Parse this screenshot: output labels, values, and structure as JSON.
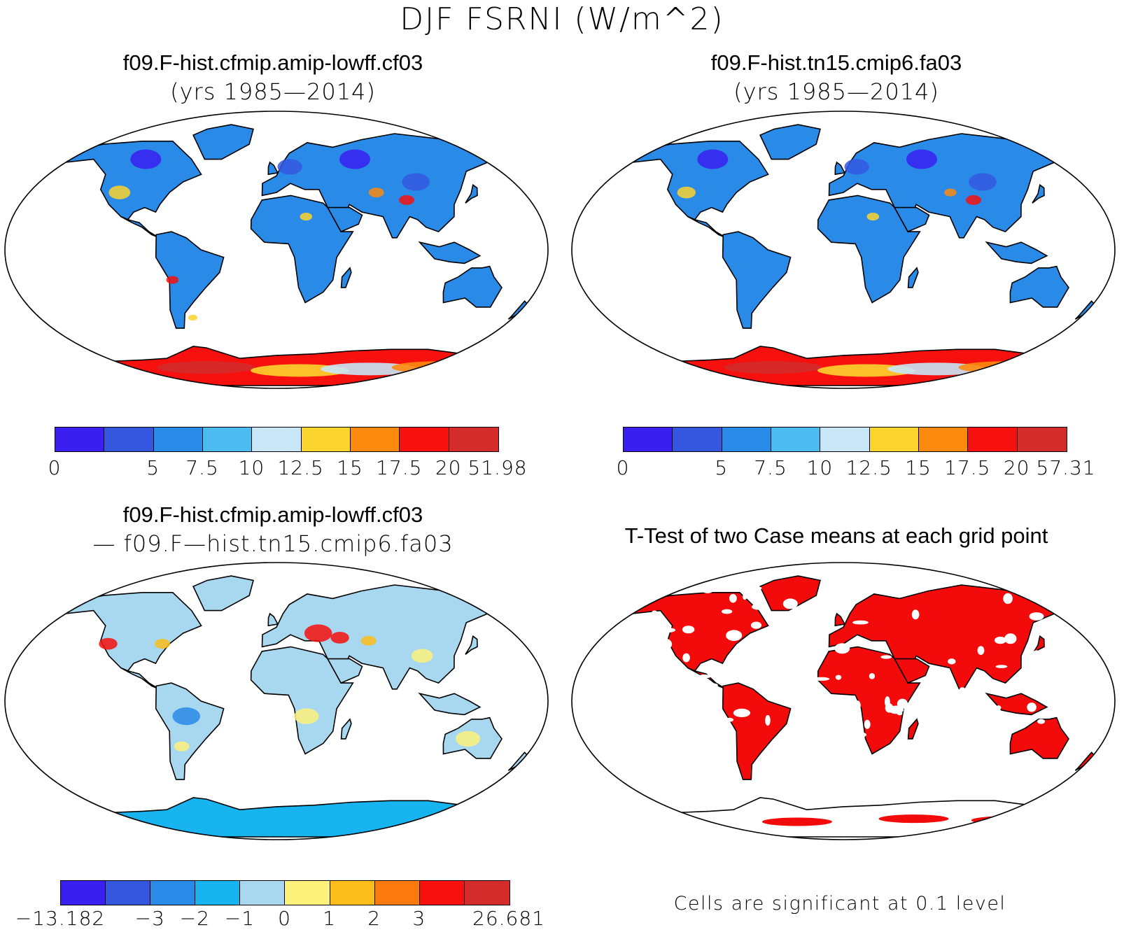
{
  "title": "DJF FSRNI (W/m^2)",
  "panels": [
    {
      "id": "case1",
      "title": "f09.F-hist.cfmip.amip-lowff.cf03",
      "subtitle": "(yrs 1985—2014)",
      "field": "FSRNI",
      "colorbar": {
        "colors": [
          "#3a1ff0",
          "#3557e0",
          "#2a8ae8",
          "#4cbcf0",
          "#c8e6f6",
          "#fcd42e",
          "#fb8a0e",
          "#f6100e",
          "#d42b2b"
        ],
        "ticks": [
          "0",
          "5",
          "7.5",
          "10",
          "12.5",
          "15",
          "17.5",
          "20",
          "51.98"
        ],
        "tick_positions": [
          0,
          2,
          3,
          4,
          5,
          6,
          7,
          8,
          9
        ]
      }
    },
    {
      "id": "case2",
      "title": "f09.F-hist.tn15.cmip6.fa03",
      "subtitle": "(yrs 1985—2014)",
      "field": "FSRNI",
      "colorbar": {
        "colors": [
          "#3a1ff0",
          "#3557e0",
          "#2a8ae8",
          "#4cbcf0",
          "#c8e6f6",
          "#fcd42e",
          "#fb8a0e",
          "#f6100e",
          "#d42b2b"
        ],
        "ticks": [
          "0",
          "5",
          "7.5",
          "10",
          "12.5",
          "15",
          "17.5",
          "20",
          "57.31"
        ],
        "tick_positions": [
          0,
          2,
          3,
          4,
          5,
          6,
          7,
          8,
          9
        ]
      }
    },
    {
      "id": "difference",
      "title": "f09.F-hist.cfmip.amip-lowff.cf03",
      "subtitle": "— f09.F—hist.tn15.cmip6.fa03",
      "field": "difference",
      "colorbar": {
        "colors": [
          "#3a1ff0",
          "#3557e0",
          "#2a8ae8",
          "#18b4f0",
          "#a8d8f0",
          "#fdf27a",
          "#fbbd1a",
          "#fb7a0e",
          "#f6100e",
          "#d42b2b"
        ],
        "ticks": [
          "−13.182",
          "−3",
          "−2",
          "−1",
          "0",
          "1",
          "2",
          "3",
          "26.681"
        ],
        "tick_positions": [
          0,
          2,
          3,
          4,
          5,
          6,
          7,
          8,
          10
        ]
      }
    },
    {
      "id": "ttest",
      "title": "T-Test of two Case means at each grid point",
      "field": "ttest",
      "note": "Cells are significant at 0.1 level",
      "significant_color": "#f30a0a"
    }
  ]
}
